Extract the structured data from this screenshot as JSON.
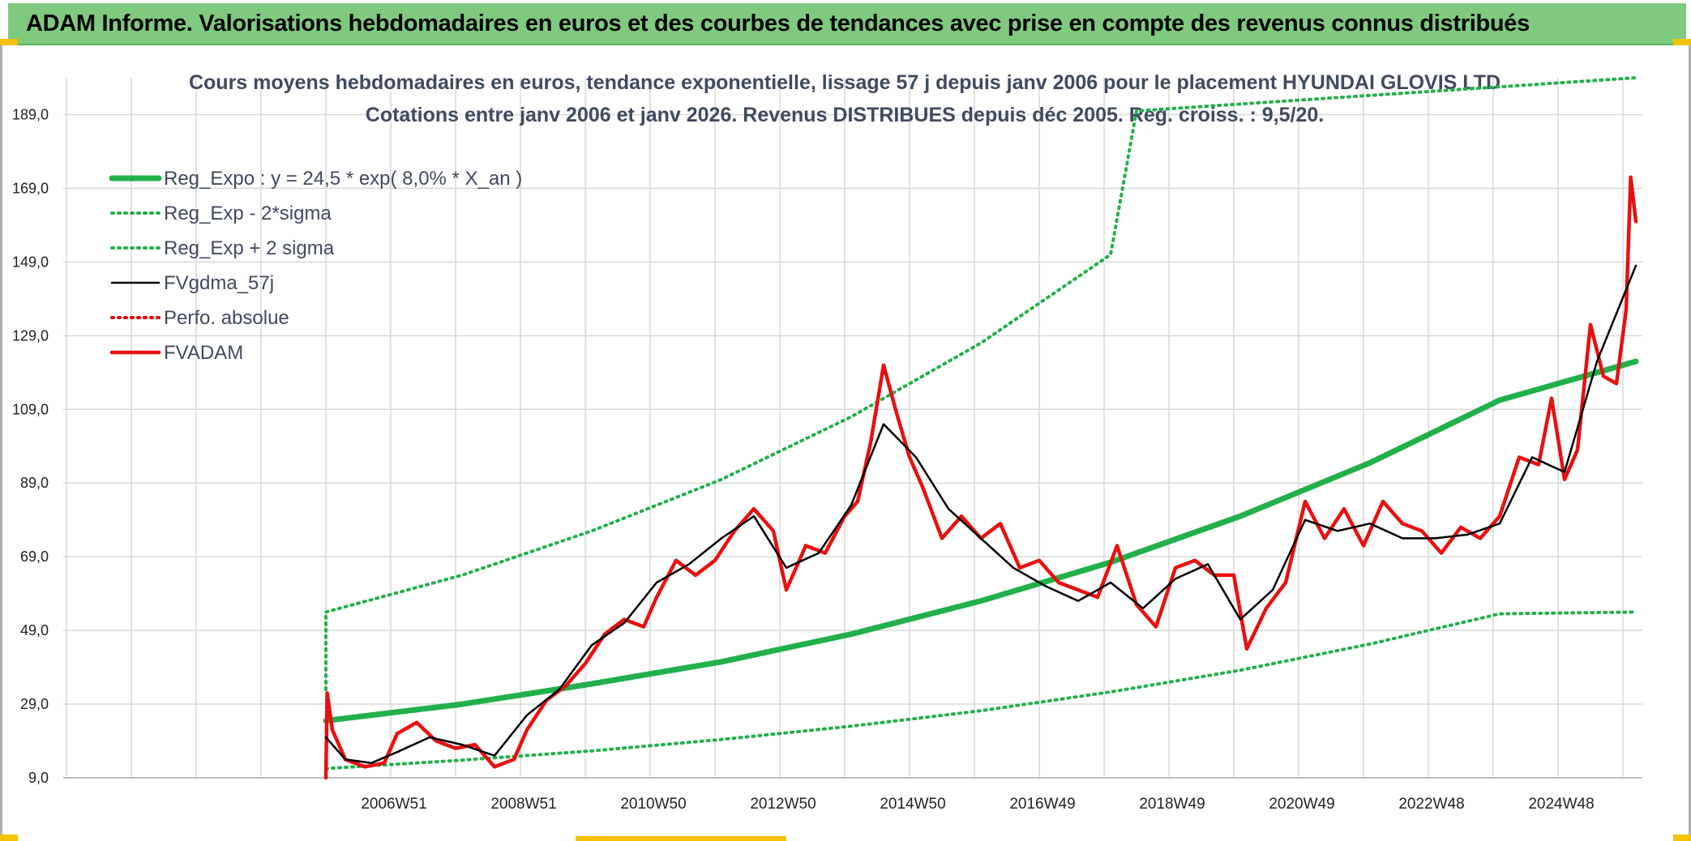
{
  "header": {
    "title": "ADAM Informe. Valorisations hebdomadaires en euros et des courbes de tendances avec prise en compte des revenus connus distribués"
  },
  "chart_data": {
    "type": "line",
    "title": "Cours moyens hebdomadaires en euros, tendance exponentielle, lissage 57 j depuis janv 2006 pour le placement HYUNDAI GLOVIS LTD",
    "subtitle": "Cotations entre janv 2006 et janv 2026. Revenus DISTRIBUES depuis déc 2005. Reg. croiss. : 9,5/20.",
    "xlabel": "",
    "ylabel": "",
    "ylim": [
      9,
      199
    ],
    "yticks": [
      "9,0",
      "29,0",
      "49,0",
      "69,0",
      "89,0",
      "109,0",
      "129,0",
      "149,0",
      "169,0",
      "189,0"
    ],
    "xticks": [
      "2006W51",
      "2008W51",
      "2010W50",
      "2012W50",
      "2014W50",
      "2016W49",
      "2018W49",
      "2020W49",
      "2022W48",
      "2024W48"
    ],
    "legend_position": "top-left",
    "grid": true,
    "series": [
      {
        "name": "Reg_Expo : y = 24,5 * exp( 8,0% *  X_an )",
        "color": "#22b04b",
        "style": "solid-thick",
        "x": [
          2005.9,
          2008.0,
          2010.0,
          2012.0,
          2014.0,
          2016.0,
          2018.0,
          2020.0,
          2022.0,
          2024.0,
          2026.1
        ],
        "values": [
          24.5,
          29.0,
          34.5,
          40.5,
          48.0,
          57.0,
          67.5,
          80.0,
          94.5,
          111.5,
          122.0
        ]
      },
      {
        "name": "Reg_Exp - 2*sigma",
        "color": "#22b04b",
        "style": "dotted",
        "x": [
          2005.9,
          2008.0,
          2010.0,
          2012.0,
          2014.0,
          2016.0,
          2018.0,
          2020.0,
          2022.0,
          2024.0,
          2026.1
        ],
        "values": [
          11.5,
          13.8,
          16.3,
          19.4,
          23.0,
          27.2,
          32.3,
          38.2,
          45.3,
          53.5,
          54.0
        ]
      },
      {
        "name": "Reg_Exp + 2 sigma",
        "color": "#22b04b",
        "style": "dotted",
        "x": [
          2005.9,
          2005.9,
          2008.0,
          2010.0,
          2012.0,
          2014.0,
          2016.0,
          2018.0,
          2018.4,
          2026.1
        ],
        "values": [
          33.0,
          54.0,
          64.0,
          76.0,
          90.0,
          107.0,
          127.0,
          151.0,
          190.0,
          199.0
        ]
      },
      {
        "name": "FVgdma_57j",
        "color": "#000000",
        "style": "solid",
        "x": [
          2005.9,
          2006.2,
          2006.6,
          2007.0,
          2007.5,
          2008.0,
          2008.5,
          2009.0,
          2009.5,
          2010.0,
          2010.5,
          2011.0,
          2011.5,
          2012.0,
          2012.5,
          2013.0,
          2013.5,
          2014.0,
          2014.5,
          2015.0,
          2015.5,
          2016.0,
          2016.5,
          2017.0,
          2017.5,
          2018.0,
          2018.5,
          2019.0,
          2019.5,
          2020.0,
          2020.5,
          2021.0,
          2021.5,
          2022.0,
          2022.5,
          2023.0,
          2023.5,
          2024.0,
          2024.5,
          2025.0,
          2025.5,
          2026.1
        ],
        "values": [
          20.0,
          14.0,
          13.0,
          16.0,
          20.0,
          18.0,
          15.0,
          26.0,
          33.0,
          45.0,
          51.0,
          62.0,
          67.0,
          74.0,
          80.0,
          66.0,
          70.0,
          83.0,
          105.0,
          96.0,
          82.0,
          74.0,
          66.0,
          61.0,
          57.0,
          62.0,
          55.0,
          63.0,
          67.0,
          52.0,
          60.0,
          79.0,
          76.0,
          78.0,
          74.0,
          74.0,
          75.0,
          78.0,
          96.0,
          92.0,
          122.0,
          148.0
        ]
      },
      {
        "name": "Perfo. absolue",
        "color": "#e00000",
        "style": "dotted",
        "x": [],
        "values": []
      },
      {
        "name": "FVADAM",
        "color": "#e81010",
        "style": "solid-thick",
        "x": [
          2005.9,
          2005.92,
          2006.0,
          2006.2,
          2006.5,
          2006.8,
          2007.0,
          2007.3,
          2007.6,
          2007.9,
          2008.2,
          2008.5,
          2008.8,
          2009.0,
          2009.3,
          2009.6,
          2009.9,
          2010.2,
          2010.5,
          2010.8,
          2011.0,
          2011.3,
          2011.6,
          2011.9,
          2012.2,
          2012.5,
          2012.8,
          2013.0,
          2013.3,
          2013.6,
          2013.9,
          2014.1,
          2014.3,
          2014.5,
          2014.7,
          2014.9,
          2015.1,
          2015.4,
          2015.7,
          2016.0,
          2016.3,
          2016.6,
          2016.9,
          2017.2,
          2017.5,
          2017.8,
          2018.1,
          2018.4,
          2018.7,
          2019.0,
          2019.3,
          2019.6,
          2019.9,
          2020.1,
          2020.4,
          2020.7,
          2021.0,
          2021.3,
          2021.6,
          2021.9,
          2022.2,
          2022.5,
          2022.8,
          2023.1,
          2023.4,
          2023.7,
          2024.0,
          2024.3,
          2024.6,
          2024.8,
          2025.0,
          2025.2,
          2025.4,
          2025.6,
          2025.8,
          2025.95,
          2026.02,
          2026.1
        ],
        "values": [
          9.0,
          32.0,
          22.0,
          14.0,
          12.0,
          13.0,
          21.0,
          24.0,
          19.0,
          17.0,
          18.0,
          12.0,
          14.0,
          22.0,
          30.0,
          34.0,
          40.0,
          48.0,
          52.0,
          50.0,
          58.0,
          68.0,
          64.0,
          68.0,
          76.0,
          82.0,
          76.0,
          60.0,
          72.0,
          70.0,
          80.0,
          84.0,
          100.0,
          121.0,
          108.0,
          96.0,
          88.0,
          74.0,
          80.0,
          74.0,
          78.0,
          66.0,
          68.0,
          62.0,
          60.0,
          58.0,
          72.0,
          56.0,
          50.0,
          66.0,
          68.0,
          64.0,
          64.0,
          44.0,
          55.0,
          62.0,
          84.0,
          74.0,
          82.0,
          72.0,
          84.0,
          78.0,
          76.0,
          70.0,
          77.0,
          74.0,
          80.0,
          96.0,
          94.0,
          112.0,
          90.0,
          98.0,
          132.0,
          118.0,
          116.0,
          136.0,
          172.0,
          160.0
        ]
      }
    ]
  }
}
